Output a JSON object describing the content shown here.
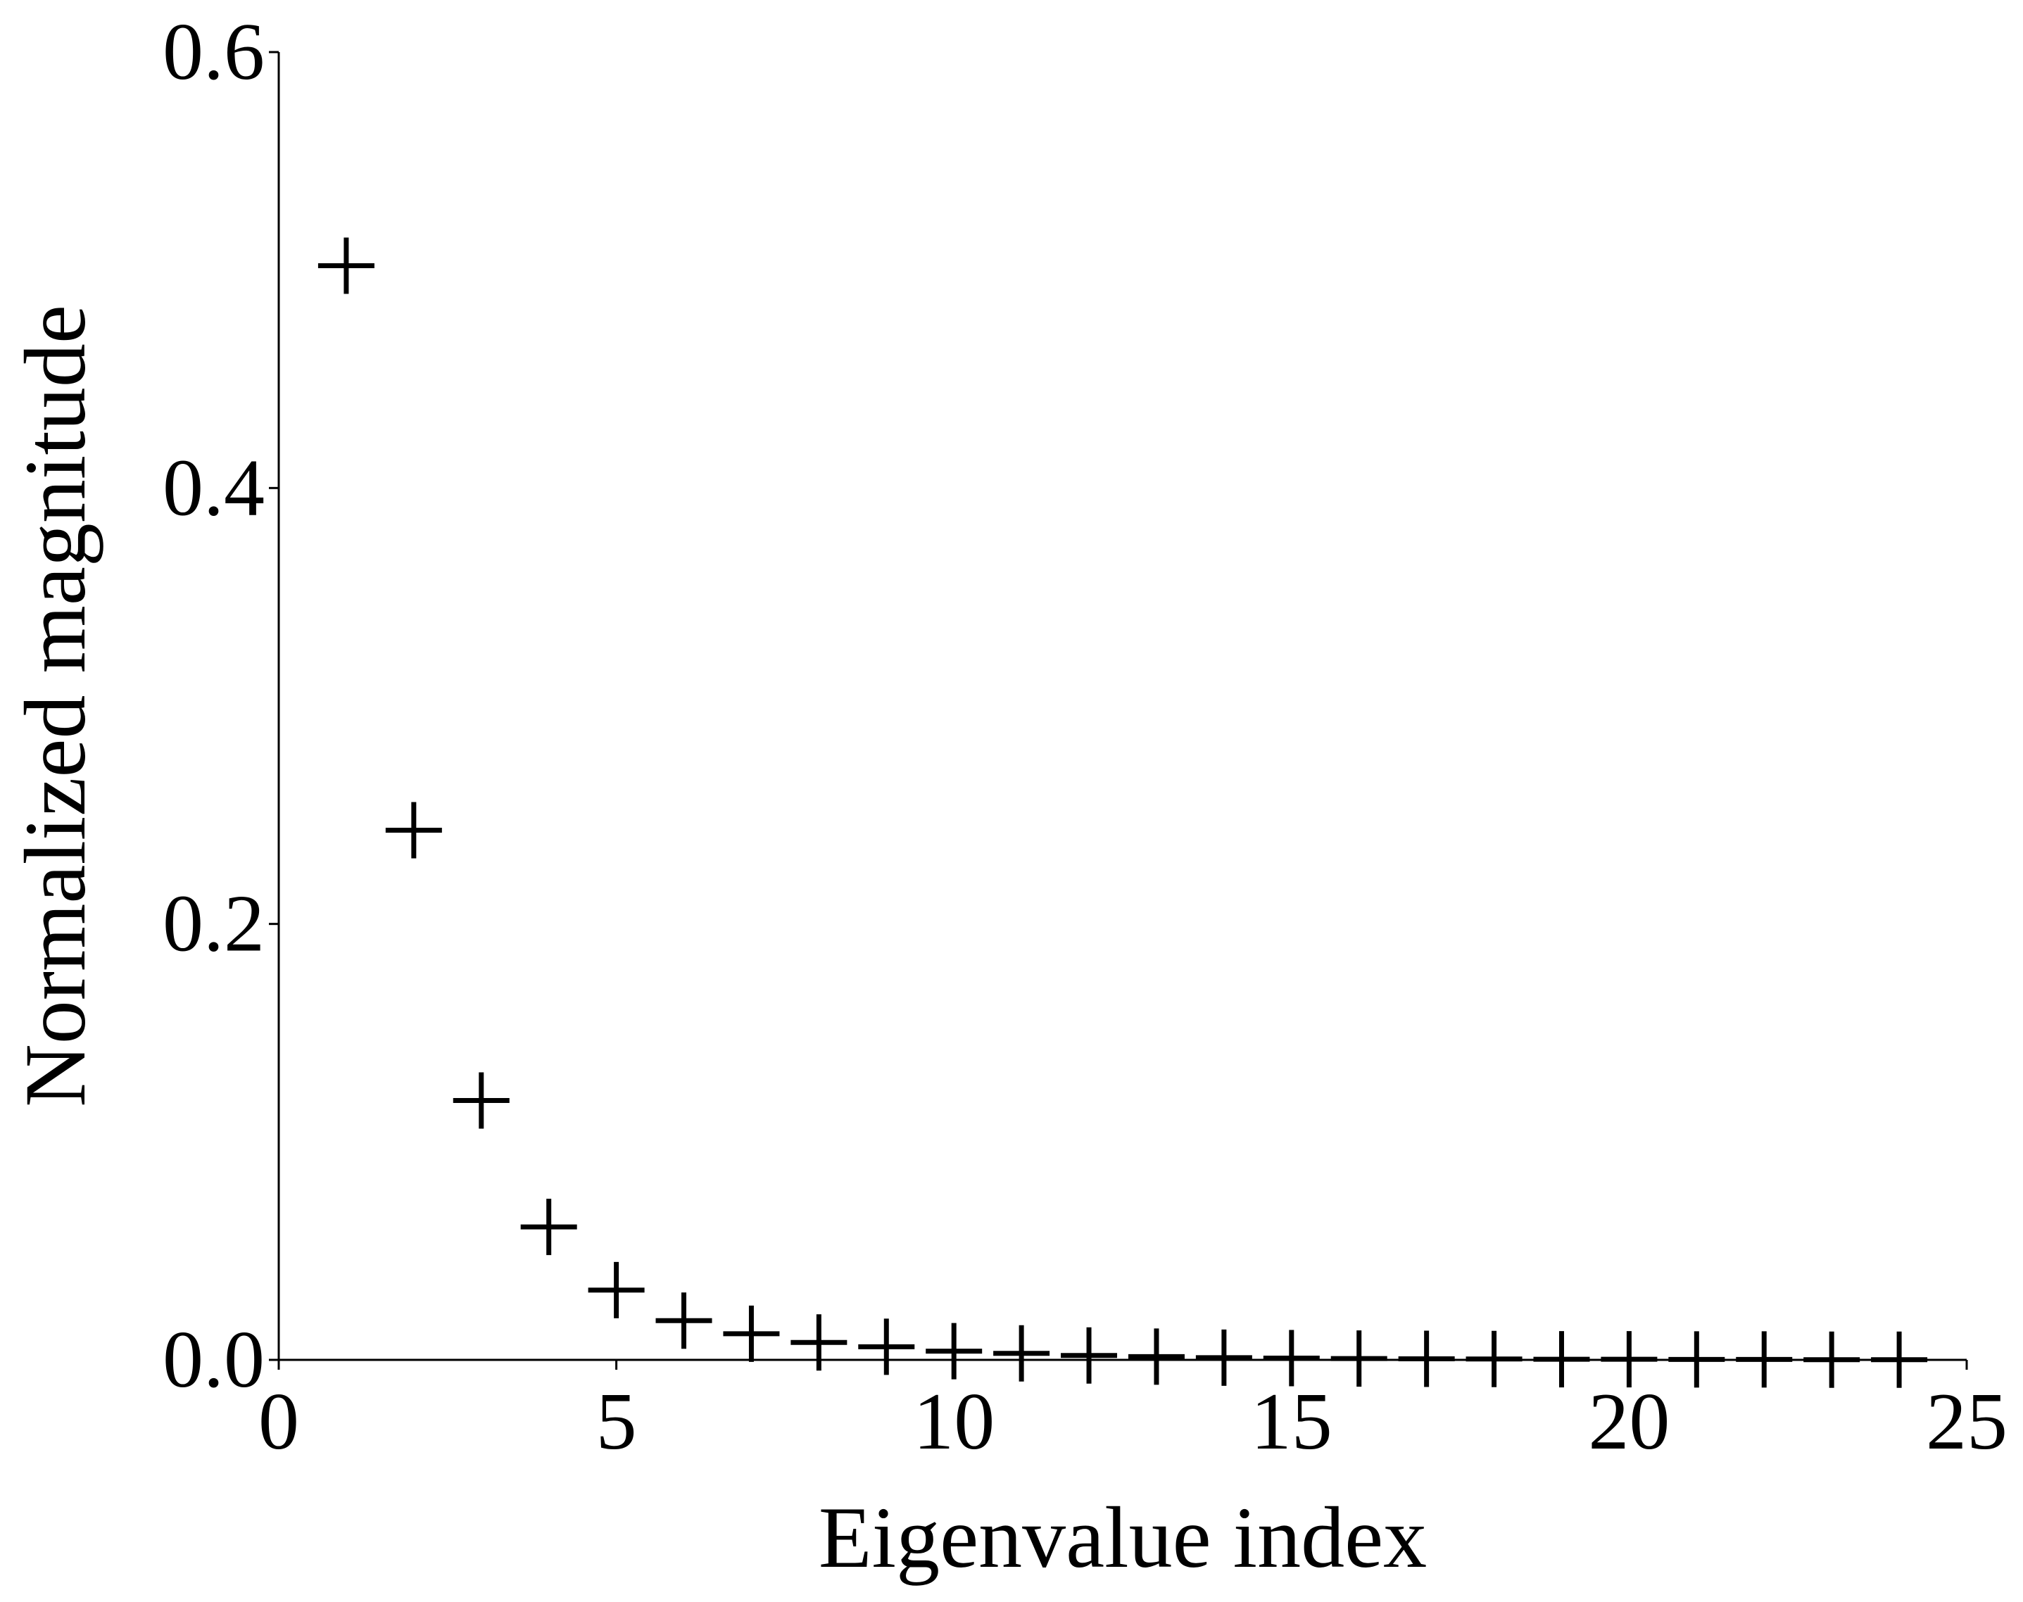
{
  "chart_data": {
    "type": "scatter",
    "marker": "+",
    "title": "",
    "xlabel": "Eigenvalue index",
    "ylabel": "Normalized magnitude",
    "xlim": [
      0,
      25
    ],
    "ylim": [
      0,
      0.6
    ],
    "xticks": [
      0,
      5,
      10,
      15,
      20,
      25
    ],
    "xtick_labels": [
      "0",
      "5",
      "10",
      "15",
      "20",
      "25"
    ],
    "yticks": [
      0.0,
      0.2,
      0.4,
      0.6
    ],
    "ytick_labels": [
      "0.0",
      "0.2",
      "0.4",
      "0.6"
    ],
    "grid": false,
    "spines": [
      "left",
      "bottom"
    ],
    "series": [
      {
        "x": [
          1,
          2,
          3,
          4,
          5,
          6,
          7,
          8,
          9,
          10,
          11,
          12,
          13,
          14,
          15,
          16,
          17,
          18,
          19,
          20,
          21,
          22,
          23,
          24
        ],
        "y": [
          0.502,
          0.243,
          0.119,
          0.061,
          0.032,
          0.018,
          0.012,
          0.008,
          0.006,
          0.004,
          0.003,
          0.002,
          0.0015,
          0.001,
          0.0008,
          0.0006,
          0.0005,
          0.0004,
          0.0003,
          0.0003,
          0.0002,
          0.0002,
          0.0001,
          0.0001
        ]
      }
    ],
    "color": "#000000"
  }
}
